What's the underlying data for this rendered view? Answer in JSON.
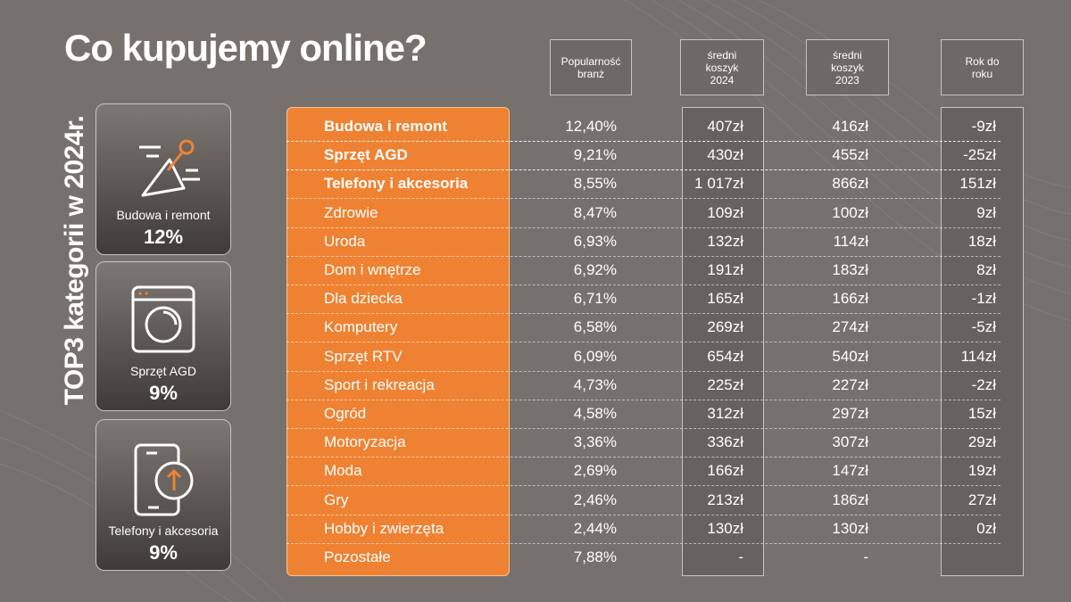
{
  "title": "Co kupujemy online?",
  "side_title": "TOP3 kategorii w 2024r.",
  "top3": [
    {
      "label": "Budowa i remont",
      "value": "12%",
      "icon": "trowel-icon"
    },
    {
      "label": "Sprzęt AGD",
      "value": "9%",
      "icon": "washing-machine-icon"
    },
    {
      "label": "Telefony i akcesoria",
      "value": "9%",
      "icon": "smartphone-icon"
    }
  ],
  "headers": {
    "popularity": "Popularność\nbranż",
    "basket_2024": "średni\nkoszyk\n2024",
    "basket_2023": "średni\nkoszyk\n2023",
    "yoy": "Rok do\nroku"
  },
  "colors": {
    "background": "#77716d",
    "accent": "#ef8232",
    "column_panel": "#67625e"
  },
  "chart_data": {
    "type": "table",
    "columns": [
      "",
      "Popularność branż",
      "średni koszyk 2024",
      "średni koszyk 2023",
      "Rok do roku"
    ],
    "rows": [
      {
        "category": "Budowa i remont",
        "popularity": "12,40%",
        "basket_2024": "407zł",
        "basket_2023": "416zł",
        "yoy": "-9zł",
        "top3": true
      },
      {
        "category": "Sprzęt AGD",
        "popularity": "9,21%",
        "basket_2024": "430zł",
        "basket_2023": "455zł",
        "yoy": "-25zł",
        "top3": true
      },
      {
        "category": "Telefony i akcesoria",
        "popularity": "8,55%",
        "basket_2024": "1 017zł",
        "basket_2023": "866zł",
        "yoy": "151zł",
        "top3": true
      },
      {
        "category": "Zdrowie",
        "popularity": "8,47%",
        "basket_2024": "109zł",
        "basket_2023": "100zł",
        "yoy": "9zł",
        "top3": false
      },
      {
        "category": "Uroda",
        "popularity": "6,93%",
        "basket_2024": "132zł",
        "basket_2023": "114zł",
        "yoy": "18zł",
        "top3": false
      },
      {
        "category": "Dom i wnętrze",
        "popularity": "6,92%",
        "basket_2024": "191zł",
        "basket_2023": "183zł",
        "yoy": "8zł",
        "top3": false
      },
      {
        "category": "Dla dziecka",
        "popularity": "6,71%",
        "basket_2024": "165zł",
        "basket_2023": "166zł",
        "yoy": "-1zł",
        "top3": false
      },
      {
        "category": "Komputery",
        "popularity": "6,58%",
        "basket_2024": "269zł",
        "basket_2023": "274zł",
        "yoy": "-5zł",
        "top3": false
      },
      {
        "category": "Sprzęt RTV",
        "popularity": "6,09%",
        "basket_2024": "654zł",
        "basket_2023": "540zł",
        "yoy": "114zł",
        "top3": false
      },
      {
        "category": "Sport i rekreacja",
        "popularity": "4,73%",
        "basket_2024": "225zł",
        "basket_2023": "227zł",
        "yoy": "-2zł",
        "top3": false
      },
      {
        "category": "Ogród",
        "popularity": "4,58%",
        "basket_2024": "312zł",
        "basket_2023": "297zł",
        "yoy": "15zł",
        "top3": false
      },
      {
        "category": "Motoryzacja",
        "popularity": "3,36%",
        "basket_2024": "336zł",
        "basket_2023": "307zł",
        "yoy": "29zł",
        "top3": false
      },
      {
        "category": "Moda",
        "popularity": "2,69%",
        "basket_2024": "166zł",
        "basket_2023": "147zł",
        "yoy": "19zł",
        "top3": false
      },
      {
        "category": "Gry",
        "popularity": "2,46%",
        "basket_2024": "213zł",
        "basket_2023": "186zł",
        "yoy": "27zł",
        "top3": false
      },
      {
        "category": "Hobby i zwierzęta",
        "popularity": "2,44%",
        "basket_2024": "130zł",
        "basket_2023": "130zł",
        "yoy": "0zł",
        "top3": false
      },
      {
        "category": "Pozostałe",
        "popularity": "7,88%",
        "basket_2024": "-",
        "basket_2023": "-",
        "yoy": "",
        "top3": false
      }
    ]
  }
}
